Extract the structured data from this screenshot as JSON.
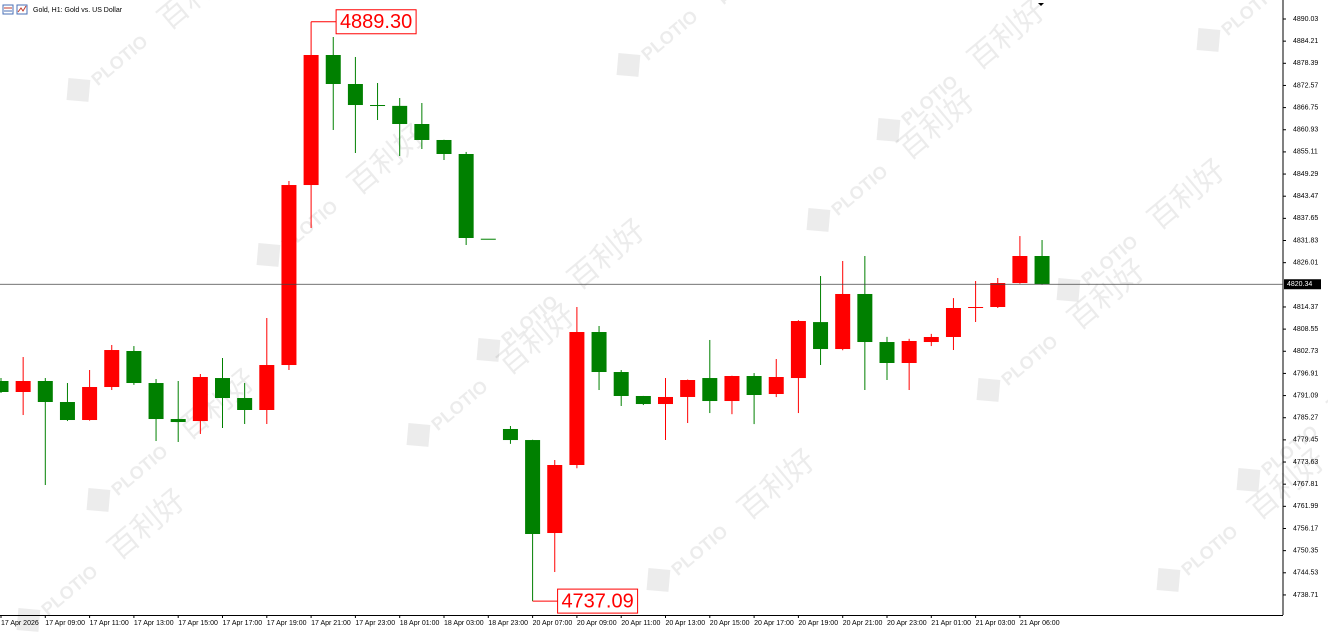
{
  "chart_data": {
    "type": "candlestick",
    "title": "Gold, H1: Gold vs. US Dollar",
    "watermark": [
      "PLOTIO",
      "百利好"
    ],
    "categories": [
      "17 Apr 2026",
      null,
      "17 Apr 09:00",
      null,
      "17 Apr 11:00",
      null,
      "17 Apr 13:00",
      null,
      "17 Apr 15:00",
      null,
      "17 Apr 17:00",
      null,
      "17 Apr 19:00",
      null,
      "17 Apr 21:00",
      null,
      "17 Apr 23:00",
      null,
      "18 Apr 01:00",
      null,
      "18 Apr 03:00",
      null,
      "18 Apr 23:00",
      null,
      "20 Apr 07:00",
      null,
      "20 Apr 09:00",
      null,
      "20 Apr 11:00",
      null,
      "20 Apr 13:00",
      null,
      "20 Apr 15:00",
      null,
      "20 Apr 17:00",
      null,
      "20 Apr 19:00",
      null,
      "20 Apr 21:00",
      null,
      "20 Apr 23:00",
      null,
      "21 Apr 01:00",
      null,
      "21 Apr 03:00",
      null,
      "21 Apr 06:00",
      null
    ],
    "open": [
      4794.92,
      4792.03,
      4794.92,
      4789.4,
      4784.67,
      4793.34,
      4802.8,
      4794.39,
      4784.93,
      4784.4,
      4795.7,
      4790.45,
      4787.3,
      4799.12,
      4846.41,
      4880.57,
      4872.95,
      4867.43,
      4867.2,
      4862.44,
      4858.24,
      4854.56,
      4832.3,
      4782.31,
      4779.41,
      4754.98,
      4772.85,
      4807.79,
      4797.28,
      4790.98,
      4788.87,
      4790.72,
      4795.7,
      4789.66,
      4796.23,
      4791.5,
      4795.7,
      4810.4,
      4803.32,
      4817.78,
      4805.16,
      4799.65,
      4805.16,
      4806.48,
      4814.1,
      4814.36,
      4820.66,
      4827.76
    ],
    "high": [
      4795.7,
      4801.22,
      4795.7,
      4794.39,
      4797.81,
      4804.38,
      4804.1,
      4795.44,
      4794.92,
      4796.76,
      4800.96,
      4794.39,
      4811.47,
      4847.47,
      4889.3,
      4885.3,
      4880.05,
      4873.21,
      4869.27,
      4867.96,
      4858.3,
      4855.1,
      4832.3,
      4783.1,
      4779.5,
      4774.16,
      4814.36,
      4809.37,
      4797.8,
      4791.0,
      4795.7,
      4795.3,
      4805.7,
      4796.3,
      4797.0,
      4800.7,
      4810.9,
      4822.5,
      4826.45,
      4827.76,
      4806.5,
      4806.0,
      4807.3,
      4816.7,
      4821.19,
      4821.98,
      4833.0,
      4831.96
    ],
    "low": [
      4791.76,
      4785.98,
      4767.59,
      4784.4,
      4784.5,
      4792.55,
      4793.9,
      4779.15,
      4778.9,
      4781.0,
      4782.57,
      4783.62,
      4783.62,
      4797.81,
      4835.12,
      4860.87,
      4854.82,
      4863.49,
      4854.03,
      4855.87,
      4852.98,
      4830.65,
      4832.3,
      4778.4,
      4737.09,
      4744.73,
      4772.0,
      4792.55,
      4788.35,
      4788.6,
      4779.41,
      4783.88,
      4786.5,
      4786.2,
      4783.6,
      4790.7,
      4786.5,
      4799.12,
      4803.0,
      4792.55,
      4795.18,
      4792.55,
      4804.1,
      4803.06,
      4810.42,
      4814.1,
      4820.5,
      4820.2
    ],
    "close": [
      4792.03,
      4794.92,
      4789.4,
      4784.67,
      4793.34,
      4803.06,
      4794.39,
      4784.93,
      4784.14,
      4795.97,
      4790.45,
      4787.3,
      4799.12,
      4846.41,
      4880.57,
      4872.95,
      4867.43,
      4867.2,
      4862.44,
      4858.24,
      4854.56,
      4832.49,
      4832.3,
      4779.41,
      4754.72,
      4772.85,
      4807.79,
      4797.28,
      4790.98,
      4788.87,
      4790.72,
      4795.18,
      4789.66,
      4796.23,
      4791.24,
      4795.97,
      4810.68,
      4803.32,
      4817.78,
      4805.16,
      4799.65,
      4805.43,
      4806.48,
      4814.1,
      4814.36,
      4820.66,
      4827.76,
      4820.34
    ],
    "up_color": "#ff0000",
    "down_color": "#008000",
    "ylim": [
      4733.44,
      4895.02
    ],
    "yticks": [
      4890.03,
      4884.21,
      4878.39,
      4872.57,
      4866.75,
      4860.93,
      4855.11,
      4849.29,
      4843.47,
      4837.65,
      4831.83,
      4826.01,
      4814.37,
      4808.55,
      4802.73,
      4796.91,
      4791.09,
      4785.27,
      4779.45,
      4773.63,
      4767.81,
      4761.99,
      4756.17,
      4750.35,
      4744.53,
      4738.71
    ],
    "current_price": 4820.34,
    "annotations": [
      {
        "value": 4889.3,
        "label": "4889.30"
      },
      {
        "value": 4737.09,
        "label": "4737.09"
      }
    ]
  }
}
